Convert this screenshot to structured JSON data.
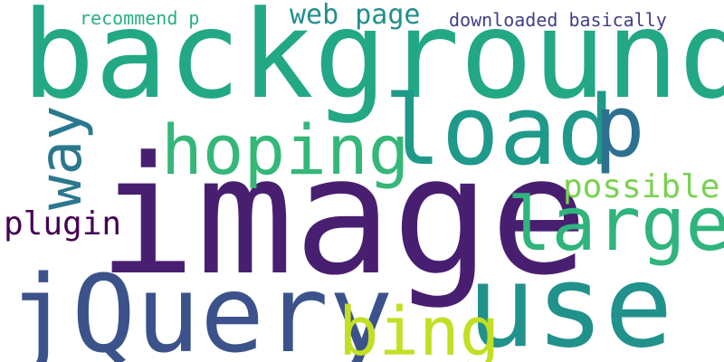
{
  "words": [
    {
      "key": "background",
      "text": "background",
      "color": "#22a884"
    },
    {
      "key": "image",
      "text": "image",
      "color": "#481f70"
    },
    {
      "key": "jquery",
      "text": "jQuery",
      "color": "#3b528b"
    },
    {
      "key": "use",
      "text": "use",
      "color": "#21918c"
    },
    {
      "key": "load",
      "text": "load",
      "color": "#1f9a8a"
    },
    {
      "key": "hoping",
      "text": "hoping",
      "color": "#35b779"
    },
    {
      "key": "large",
      "text": "large",
      "color": "#2fb47c"
    },
    {
      "key": "way",
      "text": "way",
      "color": "#2a788e"
    },
    {
      "key": "p",
      "text": "p",
      "color": "#2c718e"
    },
    {
      "key": "bing",
      "text": "bing",
      "color": "#c2df23"
    },
    {
      "key": "possible",
      "text": "possible",
      "color": "#7ad151"
    },
    {
      "key": "plugin",
      "text": "plugin",
      "color": "#440154"
    },
    {
      "key": "web_page",
      "text": "web page",
      "color": "#218f8d"
    },
    {
      "key": "recommend_p",
      "text": "recommend p",
      "color": "#29af7f"
    },
    {
      "key": "downloaded_basically",
      "text": "downloaded basically",
      "color": "#433e85"
    }
  ]
}
